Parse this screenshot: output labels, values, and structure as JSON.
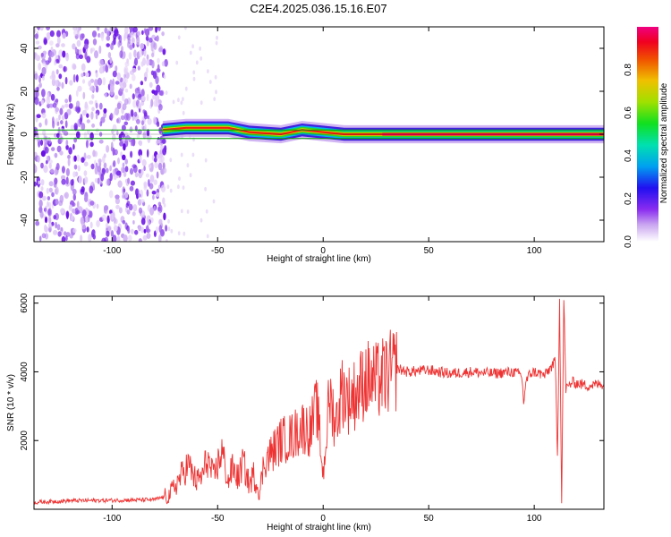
{
  "title": "C2E4.2025.036.15.16.E07",
  "chart_data": [
    {
      "type": "heatmap",
      "xlabel": "Height of straight line (km)",
      "ylabel": "Frequency (Hz)",
      "xlim": [
        -137,
        133
      ],
      "ylim": [
        -50,
        50
      ],
      "xticks": [
        -100,
        -50,
        0,
        50,
        100
      ],
      "yticks": [
        -40,
        -20,
        0,
        20,
        40
      ],
      "colorbar": {
        "label": "Normalized spectral amplitude",
        "range": [
          0,
          1
        ],
        "ticks": [
          "0.0",
          "0.2",
          "0.4",
          "0.6",
          "0.8"
        ],
        "colors": [
          "#ffffff",
          "#b888f0",
          "#6a00e8",
          "#0020f0",
          "#00c8f0",
          "#00e040",
          "#a0e000",
          "#f0d000",
          "#f07000",
          "#f00000",
          "#f00080"
        ]
      },
      "noise_region_x": [
        -137,
        -71
      ],
      "signal_band": [
        {
          "x": -76,
          "freq": 2,
          "amp": 0.75
        },
        {
          "x": -65,
          "freq": 3,
          "amp": 0.7
        },
        {
          "x": -55,
          "freq": 3,
          "amp": 0.75
        },
        {
          "x": -45,
          "freq": 3,
          "amp": 0.75
        },
        {
          "x": -35,
          "freq": 1,
          "amp": 0.8
        },
        {
          "x": -20,
          "freq": 0,
          "amp": 0.9
        },
        {
          "x": -10,
          "freq": 2,
          "amp": 0.8
        },
        {
          "x": 0,
          "freq": 1,
          "amp": 0.85
        },
        {
          "x": 10,
          "freq": 0,
          "amp": 0.9
        },
        {
          "x": 28,
          "freq": 0,
          "amp": 0.95
        },
        {
          "x": 60,
          "freq": 0,
          "amp": 1.0
        },
        {
          "x": 88,
          "freq": 0,
          "amp": 0.95
        },
        {
          "x": 112,
          "freq": 0,
          "amp": 0.9
        },
        {
          "x": 133,
          "freq": 0,
          "amp": 1.0
        }
      ]
    },
    {
      "type": "line",
      "xlabel": "Height of straight line (km)",
      "ylabel": "SNR (10 * v/v)",
      "xlim": [
        -137,
        133
      ],
      "ylim": [
        0,
        6200
      ],
      "xticks": [
        -100,
        -50,
        0,
        50,
        100
      ],
      "yticks": [
        2000,
        4000,
        6000
      ],
      "series": [
        {
          "color": "#ee3333",
          "x": [
            -137,
            -120,
            -100,
            -80,
            -73,
            -68,
            -64,
            -60,
            -57,
            -55,
            -52,
            -50,
            -48,
            -45,
            -43,
            -40,
            -38,
            -35,
            -33,
            -30,
            -28,
            -25,
            -20,
            -15,
            -10,
            -6,
            -3,
            0,
            3,
            6,
            9,
            12,
            16,
            20,
            25,
            30,
            35,
            40,
            50,
            60,
            70,
            80,
            90,
            94,
            95,
            96,
            98,
            100,
            105,
            110,
            111,
            112,
            113,
            114,
            115,
            118,
            125,
            133
          ],
          "y": [
            200,
            250,
            260,
            280,
            400,
            900,
            1300,
            800,
            1000,
            1500,
            900,
            1300,
            1700,
            800,
            1200,
            900,
            1400,
            700,
            1000,
            500,
            1400,
            1600,
            2000,
            2100,
            2400,
            2300,
            3000,
            1000,
            3300,
            2500,
            3500,
            3200,
            3400,
            3800,
            3700,
            3900,
            4100,
            4000,
            4050,
            3950,
            4000,
            3950,
            4000,
            3900,
            3100,
            3700,
            3950,
            4000,
            3900,
            4300,
            1500,
            6200,
            200,
            6100,
            3500,
            3700,
            3600,
            3650
          ]
        }
      ]
    }
  ]
}
